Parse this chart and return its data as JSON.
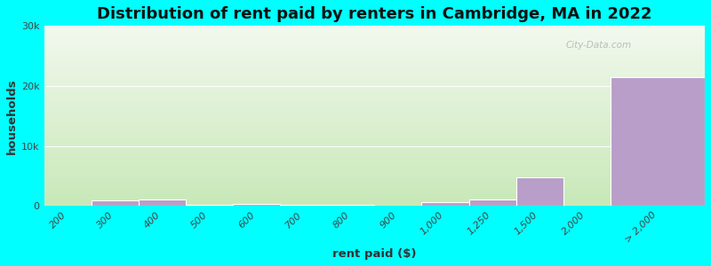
{
  "title": "Distribution of rent paid by renters in Cambridge, MA in 2022",
  "xlabel": "rent paid ($)",
  "ylabel": "households",
  "background_color": "#00FFFF",
  "bar_color": "#b89ec8",
  "bar_edge_color": "#ffffff",
  "categories": [
    "200",
    "300",
    "400",
    "500",
    "600",
    "700",
    "800",
    "900",
    "1,000",
    "1,250",
    "1,500",
    "2,000",
    "> 2,000"
  ],
  "values": [
    50,
    950,
    1050,
    200,
    300,
    150,
    200,
    100,
    650,
    1100,
    4700,
    80,
    21500
  ],
  "bar_lefts": [
    0,
    1,
    2,
    3,
    4,
    5,
    6,
    7,
    8,
    9,
    10,
    11,
    12
  ],
  "bar_widths": [
    1,
    1,
    1,
    1,
    1,
    1,
    1,
    1,
    1,
    1,
    1,
    1,
    2
  ],
  "ylim": [
    0,
    30000
  ],
  "yticks": [
    0,
    10000,
    20000,
    30000
  ],
  "ytick_labels": [
    "0",
    "10k",
    "20k",
    "30k"
  ],
  "title_fontsize": 13,
  "axis_label_fontsize": 9.5,
  "tick_fontsize": 8,
  "watermark": "City-Data.com",
  "gradient_bottom": "#c8e8b8",
  "gradient_top": "#f2f8ee"
}
